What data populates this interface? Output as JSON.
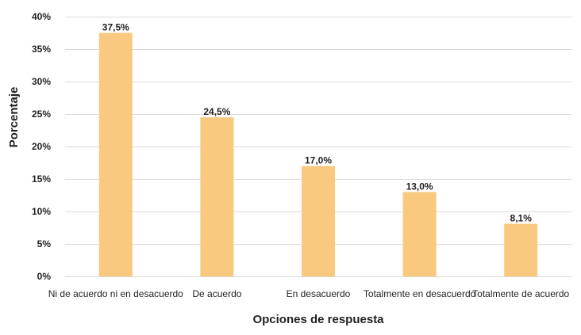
{
  "chart_data": {
    "type": "bar",
    "categories": [
      "Ni de acuerdo ni en desacuerdo",
      "De acuerdo",
      "En desacuerdo",
      "Totalmente en desacuerdo",
      "Totalmente de acuerdo"
    ],
    "values": [
      37.5,
      24.5,
      17.0,
      13.0,
      8.1
    ],
    "data_labels": [
      "37,5%",
      "24,5%",
      "17,0%",
      "13,0%",
      "8,1%"
    ],
    "xlabel": "Opciones de respuesta",
    "ylabel": "Porcentaje",
    "ylim": [
      0,
      40
    ],
    "yticks": [
      0,
      5,
      10,
      15,
      20,
      25,
      30,
      35,
      40
    ],
    "ytick_labels": [
      "0%",
      "5%",
      "10%",
      "15%",
      "20%",
      "25%",
      "30%",
      "35%",
      "40%"
    ],
    "grid": true,
    "legend": "none",
    "bar_color": "#f8c97f",
    "grid_color": "#ddd9d3"
  }
}
